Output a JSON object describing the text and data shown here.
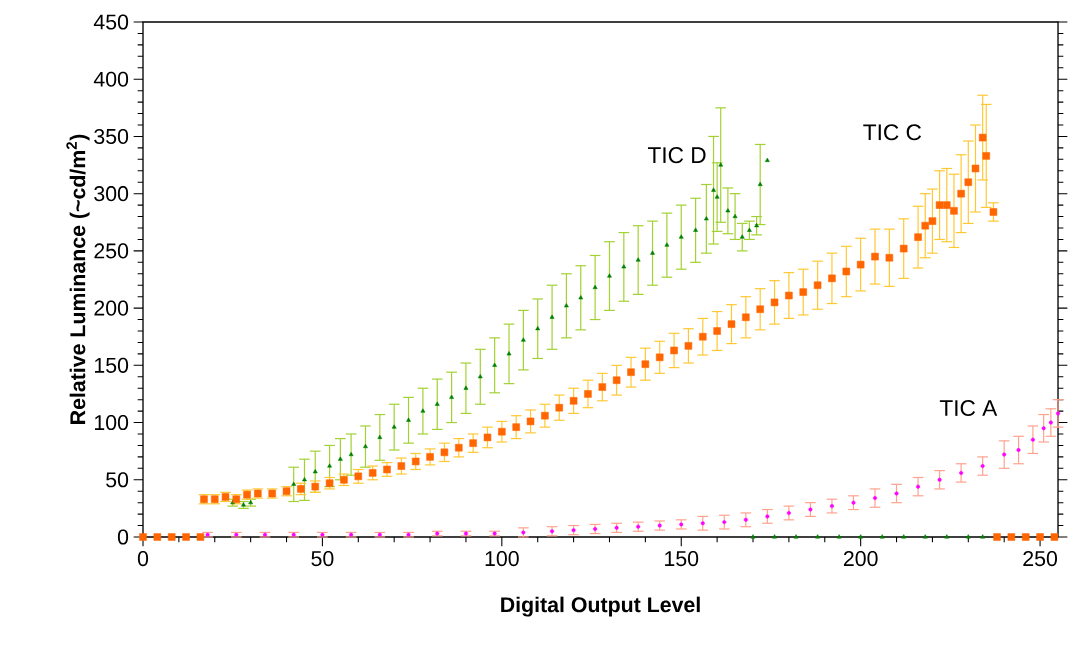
{
  "chart_data": {
    "type": "scatter",
    "xlabel": "Digital Output Level",
    "ylabel": "Relative Luminance (~cd/m$^{2}$)",
    "xlim": [
      0,
      255
    ],
    "ylim": [
      0,
      450
    ],
    "xticks": [
      0,
      50,
      100,
      150,
      200,
      250
    ],
    "yticks": [
      0,
      50,
      100,
      150,
      200,
      250,
      300,
      350,
      400,
      450
    ],
    "legend": false,
    "series": [
      {
        "name": "TIC D",
        "color": "#008000",
        "marker": "triangle",
        "x": [
          25,
          28,
          30,
          42,
          45,
          48,
          52,
          55,
          58,
          62,
          66,
          70,
          74,
          78,
          82,
          86,
          90,
          94,
          98,
          102,
          106,
          110,
          114,
          118,
          122,
          126,
          130,
          134,
          138,
          142,
          146,
          150,
          154,
          157,
          159,
          160,
          161,
          163,
          165,
          167,
          169,
          171,
          172,
          174,
          170,
          176,
          182,
          188,
          194,
          200,
          206,
          212,
          218,
          224,
          230,
          234
        ],
        "values": [
          30,
          28,
          30,
          46,
          50,
          57,
          62,
          68,
          72,
          79,
          87,
          96,
          102,
          110,
          116,
          122,
          130,
          140,
          150,
          160,
          172,
          182,
          192,
          202,
          209,
          218,
          228,
          236,
          242,
          248,
          255,
          262,
          268,
          278,
          303,
          297,
          325,
          285,
          280,
          262,
          268,
          272,
          308,
          329,
          0,
          0,
          0,
          0,
          0,
          0,
          0,
          0,
          0,
          0,
          0,
          0
        ],
        "errors": [
          3,
          3,
          3,
          15,
          18,
          18,
          18,
          18,
          18,
          18,
          20,
          20,
          20,
          20,
          22,
          22,
          22,
          24,
          24,
          26,
          26,
          26,
          28,
          28,
          28,
          28,
          30,
          30,
          30,
          28,
          28,
          28,
          28,
          30,
          47,
          30,
          50,
          20,
          20,
          12,
          8,
          8,
          35,
          null,
          null,
          null,
          null,
          null,
          null,
          null,
          null,
          null,
          null,
          null,
          null,
          null
        ]
      },
      {
        "name": "TIC C",
        "color": "#ff6600",
        "marker": "square",
        "x": [
          0,
          4,
          8,
          12,
          16,
          17,
          20,
          23,
          26,
          29,
          32,
          36,
          40,
          44,
          48,
          52,
          56,
          60,
          64,
          68,
          72,
          76,
          80,
          84,
          88,
          92,
          96,
          100,
          104,
          108,
          112,
          116,
          120,
          124,
          128,
          132,
          136,
          140,
          144,
          148,
          152,
          156,
          160,
          164,
          168,
          172,
          176,
          180,
          184,
          188,
          192,
          196,
          200,
          204,
          208,
          212,
          216,
          218,
          220,
          222,
          224,
          226,
          228,
          230,
          232,
          234,
          235,
          237,
          238,
          242,
          246,
          250,
          254
        ],
        "values": [
          0,
          0,
          0,
          0,
          0,
          33,
          33,
          35,
          33,
          37,
          38,
          38,
          40,
          42,
          44,
          47,
          50,
          53,
          56,
          59,
          62,
          66,
          70,
          74,
          78,
          82,
          87,
          92,
          96,
          101,
          106,
          113,
          119,
          125,
          131,
          137,
          144,
          151,
          157,
          163,
          167,
          175,
          180,
          186,
          192,
          199,
          205,
          211,
          214,
          220,
          226,
          232,
          238,
          245,
          244,
          252,
          262,
          272,
          276,
          290,
          290,
          285,
          300,
          310,
          322,
          349,
          333,
          284,
          0,
          0,
          0,
          0,
          0
        ],
        "errors": [
          null,
          null,
          null,
          null,
          null,
          4,
          4,
          4,
          4,
          4,
          4,
          4,
          4,
          5,
          5,
          5,
          5,
          6,
          6,
          6,
          7,
          7,
          7,
          8,
          8,
          8,
          9,
          9,
          10,
          10,
          10,
          11,
          11,
          12,
          12,
          13,
          13,
          14,
          14,
          15,
          15,
          16,
          17,
          17,
          18,
          18,
          19,
          20,
          20,
          21,
          22,
          22,
          23,
          24,
          25,
          26,
          27,
          28,
          28,
          30,
          32,
          32,
          34,
          36,
          38,
          37,
          45,
          8,
          null,
          null,
          null,
          null,
          null
        ]
      },
      {
        "name": "TIC A",
        "color": "#ff00ff",
        "marker": "circle",
        "x": [
          18,
          26,
          34,
          42,
          50,
          58,
          66,
          74,
          82,
          90,
          98,
          106,
          114,
          120,
          126,
          132,
          138,
          144,
          150,
          156,
          162,
          168,
          174,
          180,
          186,
          192,
          198,
          204,
          210,
          216,
          222,
          228,
          234,
          240,
          244,
          248,
          251,
          253,
          255
        ],
        "values": [
          2,
          2,
          2,
          2,
          2,
          2,
          2,
          2,
          3,
          3,
          3,
          4,
          5,
          6,
          7,
          8,
          9,
          10,
          11,
          12,
          13,
          15,
          18,
          21,
          24,
          27,
          30,
          34,
          38,
          44,
          50,
          56,
          62,
          72,
          76,
          85,
          95,
          100,
          108
        ],
        "errors": [
          2,
          2,
          2,
          2,
          2,
          2,
          2,
          2,
          2,
          2,
          2,
          4,
          4,
          4,
          4,
          4,
          4,
          4,
          4,
          6,
          6,
          6,
          6,
          6,
          6,
          6,
          6,
          8,
          8,
          8,
          8,
          8,
          8,
          12,
          12,
          12,
          12,
          12,
          12
        ]
      }
    ]
  }
}
